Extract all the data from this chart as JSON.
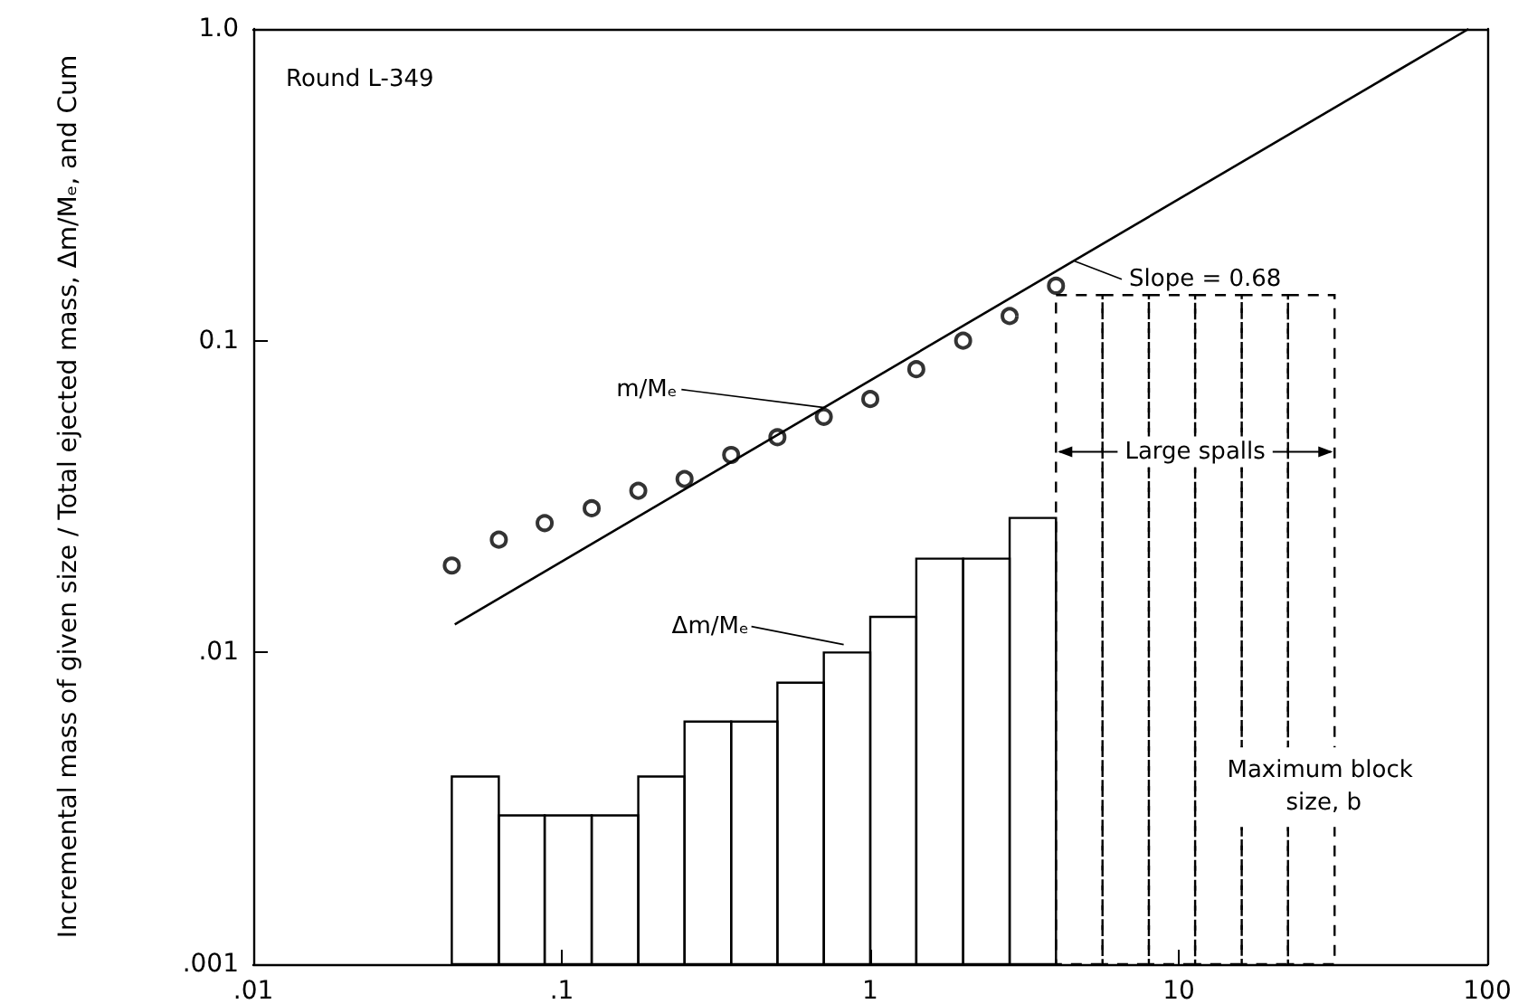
{
  "chart_data": {
    "type": "histogram",
    "ylabel": "Incremental mass of given size / Total ejected mass, Δm/Mₑ, and Cum",
    "log": "xy",
    "xlim": [
      0.01,
      100
    ],
    "ylim": [
      0.001,
      1
    ],
    "xticks": [
      {
        "value": 0.01,
        "label": ".01"
      },
      {
        "value": 0.1,
        "label": ".1"
      },
      1,
      10,
      100
    ],
    "yticks": [
      {
        "value": 0.001,
        "label": ".001"
      },
      {
        "value": 0.01,
        "label": ".01"
      },
      0.1,
      {
        "value": 1,
        "label": "1.0"
      }
    ],
    "grid": false,
    "series": [
      {
        "color": "#000000",
        "line_style": "solid",
        "bins": [
          0.044,
          0.0625,
          0.088,
          0.125,
          0.177,
          0.25,
          0.354,
          0.5,
          0.707,
          1,
          1.41,
          2,
          2.83,
          4
        ],
        "values": [
          0.004,
          0.003,
          0.003,
          0.003,
          0.004,
          0.006,
          0.006,
          0.008,
          0.01,
          0.013,
          0.02,
          0.02,
          0.027
        ]
      },
      {
        "color": "#000000",
        "line_style": "dashed",
        "bins": [
          4,
          5.66,
          8,
          11.3,
          16,
          22.6,
          32
        ],
        "values": [
          0.14,
          0.14,
          0.14,
          0.14,
          0.14,
          0.14
        ]
      },
      {
        "type": "scatter",
        "color": "#000000",
        "marker": "circle",
        "x": [
          0.044,
          0.0625,
          0.088,
          0.125,
          0.177,
          0.25,
          0.354,
          0.5,
          0.707,
          1,
          1.41,
          2,
          2.83,
          4
        ],
        "values": [
          0.019,
          0.023,
          0.026,
          0.029,
          0.033,
          0.036,
          0.043,
          0.049,
          0.057,
          0.065,
          0.081,
          0.1,
          0.12,
          0.15
        ]
      },
      {
        "type": "line",
        "color": "#000000",
        "line_style": "solid",
        "x": [
          0.045,
          87
        ],
        "values": [
          0.0123,
          1.0
        ]
      }
    ],
    "annotations": [
      "Round L-349",
      {
        "text": "Slope = 0.68",
        "x": 4.6,
        "y": 0.18
      },
      {
        "text": "m/Mₑ",
        "x": 0.71,
        "y": 0.061
      },
      {
        "text": "Δm/Mₑ",
        "x": 0.82,
        "y": 0.0106
      },
      {
        "text": "Large spalls",
        "x": 11.3,
        "y": 0.044
      },
      {
        "text": "Maximum block size, b",
        "x": 32,
        "y": 0.0037
      }
    ]
  }
}
